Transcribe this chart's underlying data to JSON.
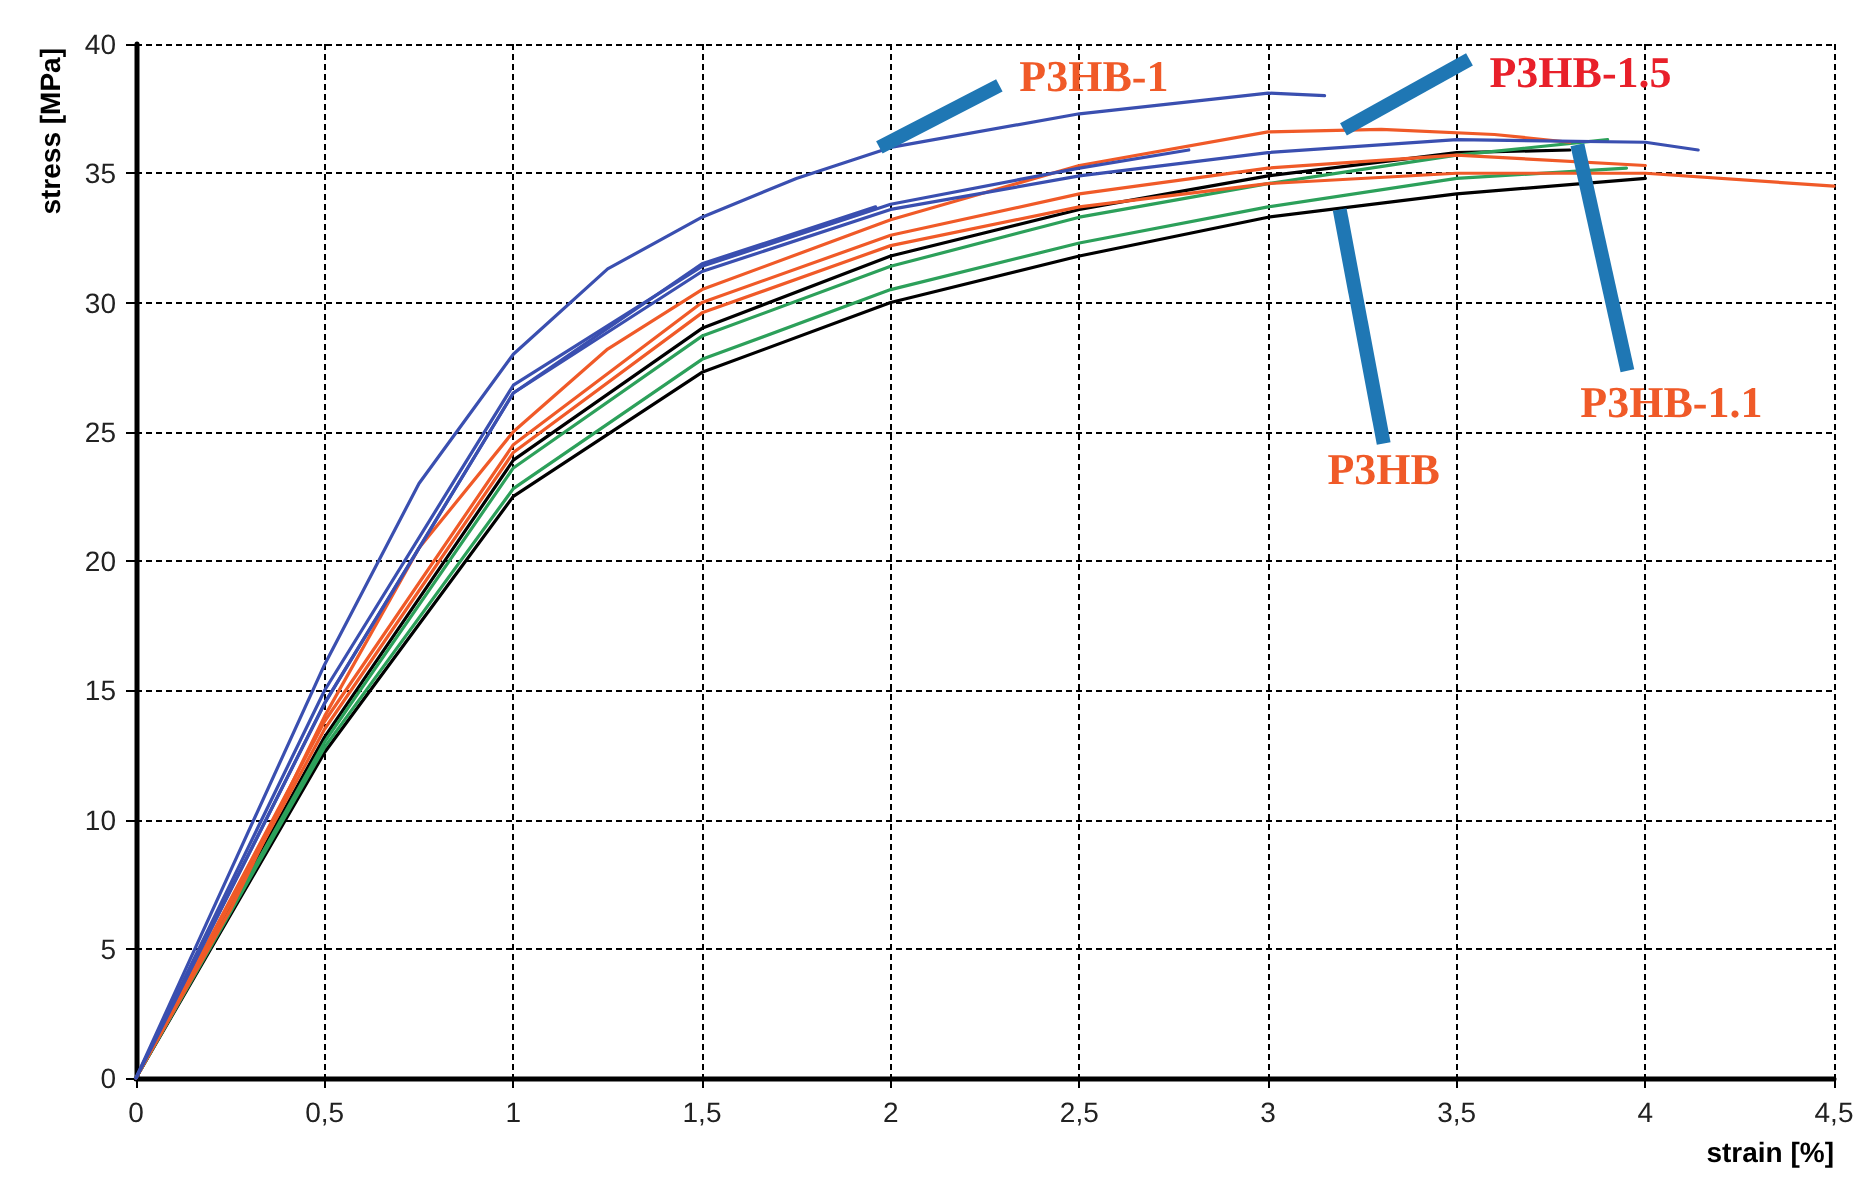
{
  "chart_data": {
    "type": "line",
    "xlabel": "strain [%]",
    "ylabel": "stress [MPa]",
    "xlim": [
      0,
      4.5
    ],
    "xticks": [
      0,
      {
        "value": 0.5,
        "label": "0,5"
      },
      1,
      {
        "value": 1.5,
        "label": "1,5"
      },
      2,
      {
        "value": 2.5,
        "label": "2,5"
      },
      3,
      {
        "value": 3.5,
        "label": "3,5"
      },
      4,
      {
        "value": 4.5,
        "label": "4,5"
      }
    ],
    "ylim": [
      0,
      40
    ],
    "yticks": [
      0,
      5,
      10,
      15,
      20,
      25,
      30,
      35,
      40
    ],
    "grid": true,
    "marker": "none",
    "line_style": "solid",
    "annotations": [
      {
        "text": "P3HB-1",
        "x": 1.97,
        "y": 36.0
      },
      {
        "text": "P3HB-1.5",
        "x": 3.2,
        "y": 36.7
      },
      {
        "text": "P3HB-1.1",
        "x": 3.82,
        "y": 36.1
      },
      {
        "text": "P3HB",
        "x": 3.19,
        "y": 33.6
      }
    ],
    "series": [
      {
        "color": "#000000",
        "x": [
          0,
          0.5,
          1,
          1.5,
          2,
          2.5,
          3,
          3.5,
          4
        ],
        "values": [
          0,
          12.6,
          22.5,
          27.3,
          30,
          31.8,
          33.3,
          34.2,
          34.8
        ]
      },
      {
        "color": "#000000",
        "x": [
          0,
          0.5,
          1,
          1.5,
          2,
          2.5,
          3,
          3.5,
          3.8
        ],
        "values": [
          0,
          13.2,
          23.9,
          29,
          31.8,
          33.6,
          34.9,
          35.8,
          35.9
        ]
      },
      {
        "color": "#2ca05a",
        "x": [
          0,
          0.5,
          1,
          1.5,
          2,
          2.5,
          3,
          3.5,
          3.95
        ],
        "values": [
          0,
          12.8,
          22.8,
          27.8,
          30.5,
          32.3,
          33.7,
          34.8,
          35.2
        ]
      },
      {
        "color": "#2ca05a",
        "x": [
          0,
          0.5,
          1,
          1.5,
          2,
          2.5,
          3,
          3.5,
          3.9
        ],
        "values": [
          0,
          13,
          23.6,
          28.7,
          31.4,
          33.3,
          34.6,
          35.7,
          36.3
        ]
      },
      {
        "color": "#f05a28",
        "x": [
          0,
          0.5,
          1,
          1.5,
          2,
          2.5,
          3,
          3.5,
          4,
          4.5
        ],
        "values": [
          0,
          13.5,
          24.2,
          29.6,
          32.2,
          33.7,
          34.6,
          35,
          35,
          34.5
        ]
      },
      {
        "color": "#f05a28",
        "x": [
          0,
          0.5,
          1,
          1.5,
          2,
          2.5,
          3,
          3.5,
          4
        ],
        "values": [
          0,
          13.8,
          24.5,
          30,
          32.6,
          34.2,
          35.2,
          35.7,
          35.3
        ]
      },
      {
        "color": "#f05a28",
        "x": [
          0,
          0.25,
          0.5,
          0.75,
          1,
          1.25,
          1.5,
          2,
          2.5,
          3,
          3.3,
          3.6,
          3.8
        ],
        "values": [
          0,
          6.5,
          14,
          20.5,
          25,
          28.2,
          30.5,
          33.2,
          35.3,
          36.6,
          36.7,
          36.5,
          36.2
        ]
      },
      {
        "color": "#3a4fb0",
        "x": [
          0,
          0.5,
          1,
          1.5,
          1.96
        ],
        "values": [
          0,
          14.5,
          26.5,
          31.5,
          33.7
        ]
      },
      {
        "color": "#3a4fb0",
        "x": [
          0,
          0.5,
          1,
          1.5,
          2,
          2.5,
          3,
          3.5,
          4,
          4.14
        ],
        "values": [
          0,
          14.5,
          26.5,
          31.2,
          33.6,
          34.9,
          35.8,
          36.3,
          36.2,
          35.9
        ]
      },
      {
        "color": "#3a4fb0",
        "x": [
          0,
          0.5,
          1,
          1.5,
          2,
          2.5,
          2.79
        ],
        "values": [
          0,
          15,
          26.8,
          31.4,
          33.8,
          35.2,
          35.9
        ]
      },
      {
        "color": "#3a4fb0",
        "x": [
          0,
          0.25,
          0.5,
          0.75,
          1,
          1.25,
          1.5,
          1.75,
          2,
          2.5,
          3,
          3.15
        ],
        "values": [
          0,
          8,
          16,
          23,
          28,
          31.3,
          33.3,
          34.8,
          36,
          37.3,
          38.1,
          38
        ]
      }
    ]
  }
}
